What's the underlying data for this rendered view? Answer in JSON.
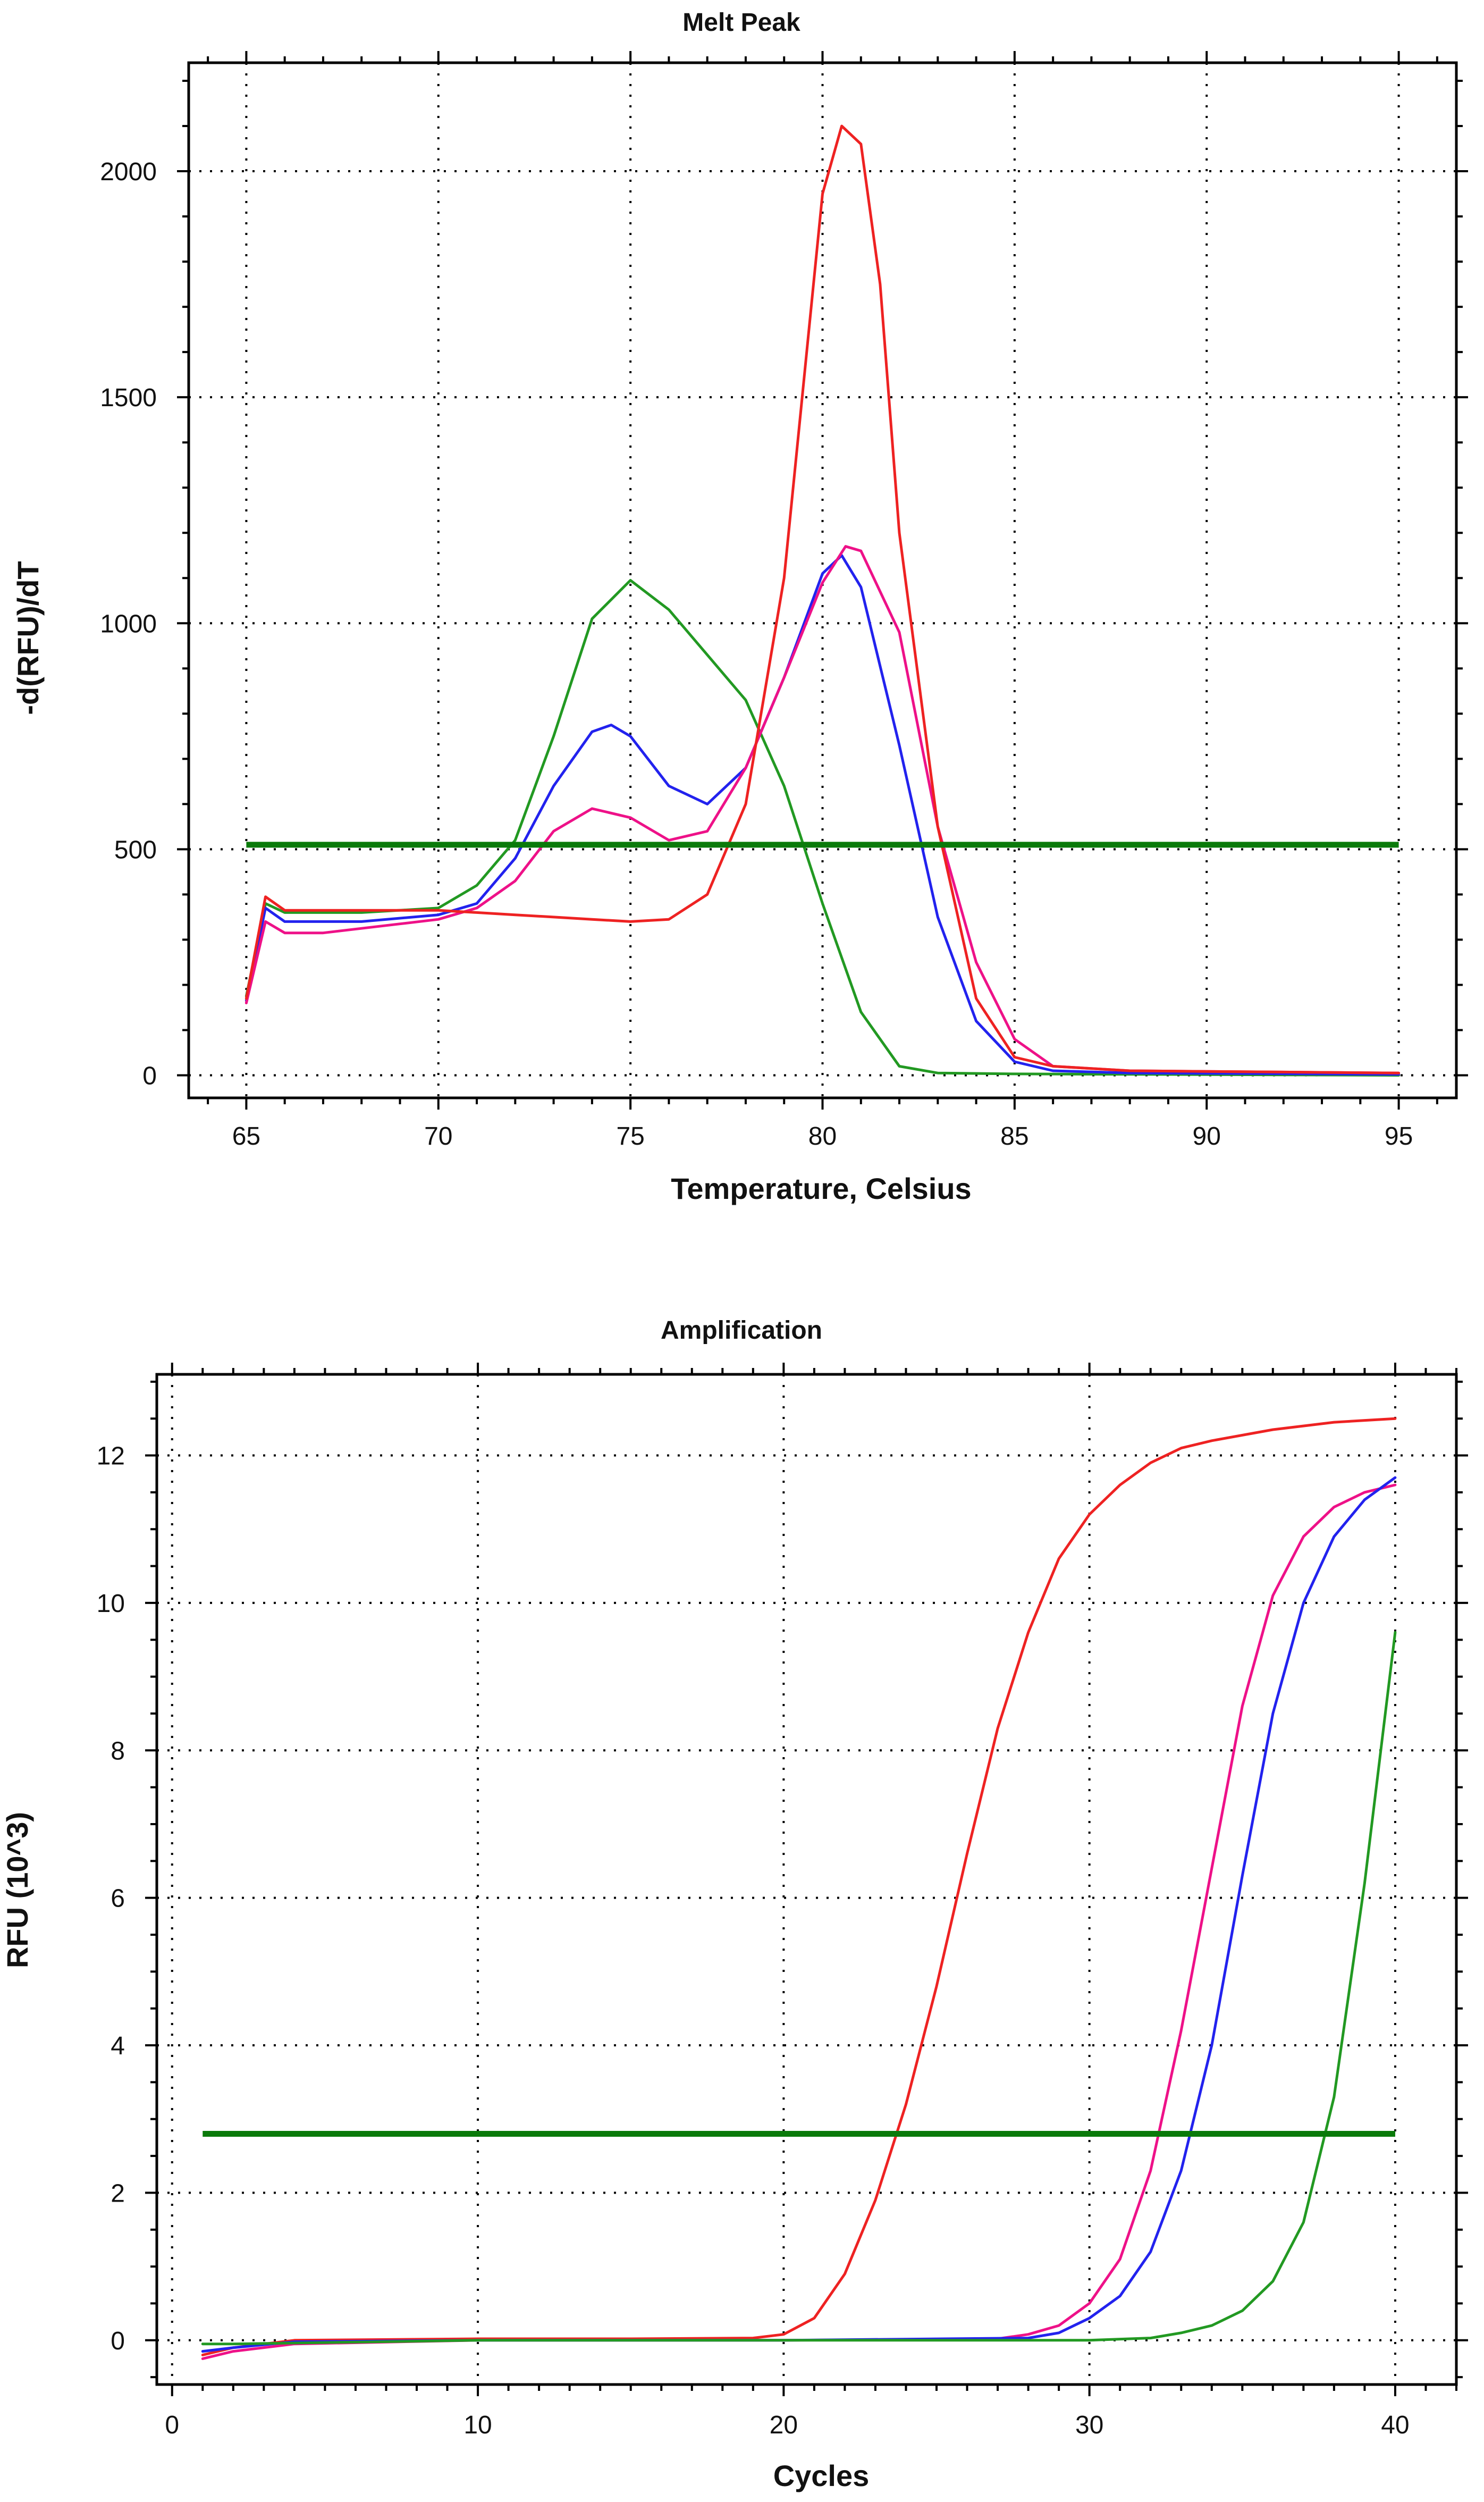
{
  "colors": {
    "red": "#ee2222",
    "pink": "#ee1188",
    "blue": "#2222ee",
    "green": "#229922",
    "threshold": "#0a7a0a"
  },
  "chart_data": [
    {
      "type": "line",
      "title": "Melt Peak",
      "xlabel": "Temperature, Celsius",
      "ylabel": "-d(RFU)/dT",
      "xlim": [
        63.5,
        96.5
      ],
      "ylim": [
        -50,
        2240
      ],
      "xticks": [
        65,
        70,
        75,
        80,
        85,
        90,
        95
      ],
      "yticks": [
        0,
        500,
        1000,
        1500,
        2000
      ],
      "x_tick_labels": [
        "65",
        "70",
        "75",
        "80",
        "85",
        "90",
        "95"
      ],
      "y_tick_labels": [
        "0",
        "500",
        "1000",
        "1500",
        "2000"
      ],
      "grid": true,
      "threshold": 510,
      "series": [
        {
          "name": "green",
          "color": "green",
          "points": [
            [
              65,
              175
            ],
            [
              65.5,
              380
            ],
            [
              66,
              360
            ],
            [
              68,
              360
            ],
            [
              70,
              370
            ],
            [
              71,
              420
            ],
            [
              72,
              520
            ],
            [
              73,
              750
            ],
            [
              74,
              1010
            ],
            [
              75,
              1095
            ],
            [
              76,
              1030
            ],
            [
              77,
              930
            ],
            [
              78,
              830
            ],
            [
              79,
              640
            ],
            [
              80,
              380
            ],
            [
              81,
              140
            ],
            [
              82,
              20
            ],
            [
              83,
              5
            ],
            [
              85,
              3
            ],
            [
              95,
              0
            ]
          ]
        },
        {
          "name": "blue",
          "color": "blue",
          "points": [
            [
              65,
              165
            ],
            [
              65.5,
              370
            ],
            [
              66,
              340
            ],
            [
              68,
              340
            ],
            [
              70,
              355
            ],
            [
              71,
              380
            ],
            [
              72,
              480
            ],
            [
              73,
              640
            ],
            [
              74,
              760
            ],
            [
              74.5,
              775
            ],
            [
              75,
              750
            ],
            [
              76,
              640
            ],
            [
              77,
              600
            ],
            [
              78,
              680
            ],
            [
              79,
              880
            ],
            [
              80,
              1110
            ],
            [
              80.5,
              1150
            ],
            [
              81,
              1080
            ],
            [
              82,
              730
            ],
            [
              83,
              350
            ],
            [
              84,
              120
            ],
            [
              85,
              30
            ],
            [
              86,
              10
            ],
            [
              88,
              5
            ],
            [
              95,
              2
            ]
          ]
        },
        {
          "name": "pink",
          "color": "pink",
          "points": [
            [
              65,
              160
            ],
            [
              65.5,
              340
            ],
            [
              66,
              315
            ],
            [
              67,
              315
            ],
            [
              68,
              325
            ],
            [
              69,
              335
            ],
            [
              70,
              345
            ],
            [
              71,
              370
            ],
            [
              72,
              430
            ],
            [
              73,
              540
            ],
            [
              74,
              590
            ],
            [
              75,
              570
            ],
            [
              76,
              520
            ],
            [
              77,
              540
            ],
            [
              78,
              680
            ],
            [
              79,
              880
            ],
            [
              80,
              1090
            ],
            [
              80.6,
              1170
            ],
            [
              81,
              1160
            ],
            [
              82,
              980
            ],
            [
              83,
              550
            ],
            [
              84,
              250
            ],
            [
              85,
              80
            ],
            [
              86,
              20
            ],
            [
              88,
              10
            ],
            [
              95,
              5
            ]
          ]
        },
        {
          "name": "red",
          "color": "red",
          "points": [
            [
              65,
              170
            ],
            [
              65.5,
              395
            ],
            [
              66,
              365
            ],
            [
              70,
              365
            ],
            [
              71,
              360
            ],
            [
              72,
              355
            ],
            [
              73,
              350
            ],
            [
              74,
              345
            ],
            [
              75,
              340
            ],
            [
              76,
              345
            ],
            [
              77,
              400
            ],
            [
              78,
              600
            ],
            [
              79,
              1100
            ],
            [
              80,
              1950
            ],
            [
              80.5,
              2100
            ],
            [
              81,
              2060
            ],
            [
              81.5,
              1750
            ],
            [
              82,
              1200
            ],
            [
              83,
              550
            ],
            [
              84,
              170
            ],
            [
              85,
              40
            ],
            [
              86,
              20
            ],
            [
              88,
              10
            ],
            [
              95,
              5
            ]
          ]
        }
      ]
    },
    {
      "type": "line",
      "title": "Amplification",
      "xlabel": "Cycles",
      "ylabel": "RFU (10^3)",
      "xlim": [
        -0.5,
        42
      ],
      "ylim": [
        -0.6,
        13.1
      ],
      "xticks": [
        0,
        10,
        20,
        30,
        40
      ],
      "yticks": [
        0,
        2,
        4,
        6,
        8,
        10,
        12
      ],
      "x_tick_labels": [
        "0",
        "10",
        "20",
        "30",
        "40"
      ],
      "y_tick_labels": [
        "0",
        "2",
        "4",
        "6",
        "8",
        "10",
        "12"
      ],
      "grid": true,
      "threshold": 2.8,
      "series": [
        {
          "name": "red",
          "color": "red",
          "points": [
            [
              1,
              -0.2
            ],
            [
              2,
              -0.1
            ],
            [
              4,
              0
            ],
            [
              10,
              0.02
            ],
            [
              15,
              0.02
            ],
            [
              19,
              0.03
            ],
            [
              20,
              0.08
            ],
            [
              21,
              0.3
            ],
            [
              22,
              0.9
            ],
            [
              23,
              1.9
            ],
            [
              24,
              3.2
            ],
            [
              25,
              4.8
            ],
            [
              26,
              6.6
            ],
            [
              27,
              8.3
            ],
            [
              28,
              9.6
            ],
            [
              29,
              10.6
            ],
            [
              30,
              11.2
            ],
            [
              31,
              11.6
            ],
            [
              32,
              11.9
            ],
            [
              33,
              12.1
            ],
            [
              34,
              12.2
            ],
            [
              36,
              12.35
            ],
            [
              38,
              12.45
            ],
            [
              40,
              12.5
            ]
          ]
        },
        {
          "name": "pink",
          "color": "pink",
          "points": [
            [
              1,
              -0.25
            ],
            [
              2,
              -0.15
            ],
            [
              4,
              -0.05
            ],
            [
              10,
              0
            ],
            [
              20,
              0
            ],
            [
              27,
              0.02
            ],
            [
              28,
              0.08
            ],
            [
              29,
              0.2
            ],
            [
              30,
              0.5
            ],
            [
              31,
              1.1
            ],
            [
              32,
              2.3
            ],
            [
              33,
              4.2
            ],
            [
              34,
              6.4
            ],
            [
              35,
              8.6
            ],
            [
              36,
              10.1
            ],
            [
              37,
              10.9
            ],
            [
              38,
              11.3
            ],
            [
              39,
              11.5
            ],
            [
              40,
              11.6
            ]
          ]
        },
        {
          "name": "blue",
          "color": "blue",
          "points": [
            [
              1,
              -0.15
            ],
            [
              2,
              -0.1
            ],
            [
              4,
              -0.02
            ],
            [
              10,
              0
            ],
            [
              20,
              0
            ],
            [
              28,
              0.03
            ],
            [
              29,
              0.1
            ],
            [
              30,
              0.3
            ],
            [
              31,
              0.6
            ],
            [
              32,
              1.2
            ],
            [
              33,
              2.3
            ],
            [
              34,
              4.0
            ],
            [
              35,
              6.3
            ],
            [
              36,
              8.5
            ],
            [
              37,
              10.0
            ],
            [
              38,
              10.9
            ],
            [
              39,
              11.4
            ],
            [
              40,
              11.7
            ]
          ]
        },
        {
          "name": "green",
          "color": "green",
          "points": [
            [
              1,
              -0.05
            ],
            [
              2,
              -0.05
            ],
            [
              10,
              0
            ],
            [
              20,
              0
            ],
            [
              30,
              0
            ],
            [
              32,
              0.03
            ],
            [
              33,
              0.1
            ],
            [
              34,
              0.2
            ],
            [
              35,
              0.4
            ],
            [
              36,
              0.8
            ],
            [
              37,
              1.6
            ],
            [
              38,
              3.3
            ],
            [
              39,
              6.2
            ],
            [
              40,
              9.6
            ]
          ]
        }
      ]
    }
  ]
}
